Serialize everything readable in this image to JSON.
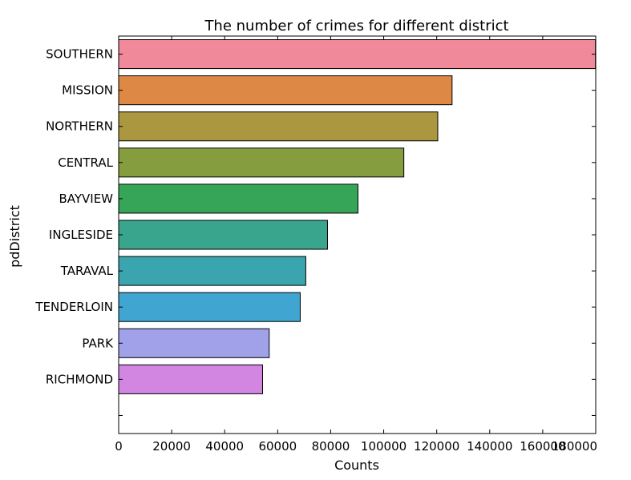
{
  "chart_data": {
    "type": "bar",
    "orientation": "horizontal",
    "title": "The number of crimes for different district",
    "xlabel": "Counts",
    "ylabel": "pdDistrict",
    "xlim": [
      0,
      180000
    ],
    "xticks": [
      0,
      20000,
      40000,
      60000,
      80000,
      100000,
      120000,
      140000,
      160000,
      180000
    ],
    "xtick_labels": [
      "0",
      "20000",
      "40000",
      "60000",
      "80000",
      "100000",
      "120000",
      "140000",
      "160000",
      "180000"
    ],
    "grid": false,
    "legend": "none",
    "categories": [
      "SOUTHERN",
      "MISSION",
      "NORTHERN",
      "CENTRAL",
      "BAYVIEW",
      "INGLESIDE",
      "TARAVAL",
      "TENDERLOIN",
      "PARK",
      "RICHMOND"
    ],
    "values": [
      179900,
      125800,
      120400,
      107600,
      90300,
      78800,
      70600,
      68500,
      56800,
      54300
    ],
    "colors": [
      "#f0899a",
      "#dd8844",
      "#ab9740",
      "#869d3f",
      "#37a558",
      "#39a58c",
      "#3aa5ae",
      "#40a5d1",
      "#a1a1ea",
      "#d286e2"
    ]
  }
}
